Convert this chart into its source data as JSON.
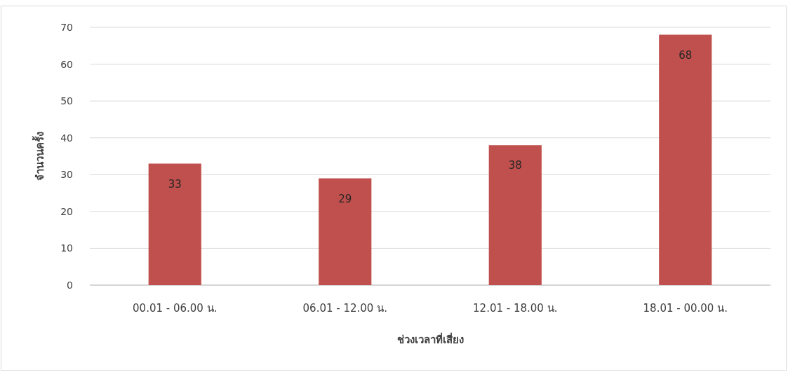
{
  "chart_data": {
    "type": "bar",
    "xlabel": "ช่วงเวลาที่เสี่ยง",
    "ylabel": "จำนวนครั้ง",
    "categories": [
      "00.01 - 06.00 น.",
      "06.01 - 12.00 น.",
      "12.01 - 18.00 น.",
      "18.01 - 00.00 น."
    ],
    "values": [
      33,
      29,
      38,
      68
    ],
    "color": "#c0504d",
    "ylim": [
      0,
      70
    ],
    "yticks": [
      0,
      10,
      20,
      30,
      40,
      50,
      60,
      70
    ],
    "grid": "y",
    "data_labels": true
  }
}
